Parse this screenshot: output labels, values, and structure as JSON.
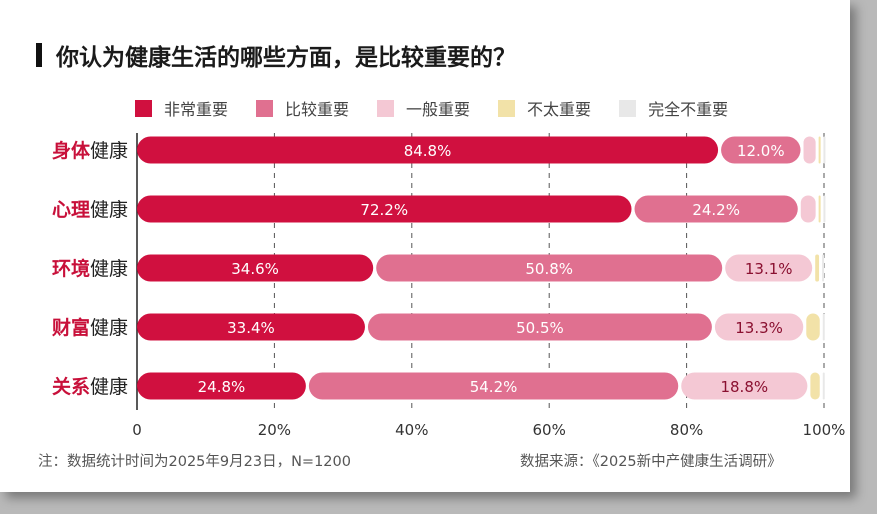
{
  "title": "你认为健康生活的哪些方面，是比较重要的？",
  "colors": [
    "#d0103f",
    "#e07090",
    "#f4c8d4",
    "#f2e2a8",
    "#e8e8e8"
  ],
  "chart_data": {
    "type": "bar",
    "orientation": "horizontal-stacked",
    "title": "你认为健康生活的哪些方面，是比较重要的？",
    "categories": [
      {
        "hl": "身体",
        "rest": "健康"
      },
      {
        "hl": "心理",
        "rest": "健康"
      },
      {
        "hl": "环境",
        "rest": "健康"
      },
      {
        "hl": "财富",
        "rest": "健康"
      },
      {
        "hl": "关系",
        "rest": "健康"
      }
    ],
    "series": [
      {
        "name": "非常重要",
        "values": [
          84.8,
          72.2,
          34.6,
          33.4,
          24.8
        ]
      },
      {
        "name": "比较重要",
        "values": [
          12.0,
          24.2,
          50.8,
          50.5,
          54.2
        ]
      },
      {
        "name": "一般重要",
        "values": [
          2.2,
          2.6,
          13.1,
          13.3,
          18.8
        ]
      },
      {
        "name": "不太重要",
        "values": [
          0.7,
          0.7,
          1.0,
          2.4,
          1.8
        ]
      },
      {
        "name": "完全不重要",
        "values": [
          0.3,
          0.3,
          0.5,
          0.4,
          0.4
        ]
      }
    ],
    "labels": [
      [
        "84.8%",
        "12.0%",
        "",
        "",
        ""
      ],
      [
        "72.2%",
        "24.2%",
        "",
        "",
        ""
      ],
      [
        "34.6%",
        "50.8%",
        "13.1%",
        "",
        ""
      ],
      [
        "33.4%",
        "50.5%",
        "13.3%",
        "",
        ""
      ],
      [
        "24.8%",
        "54.2%",
        "18.8%",
        "",
        ""
      ]
    ],
    "xticks": [
      "0",
      "20%",
      "40%",
      "60%",
      "80%",
      "100%"
    ],
    "xlim": [
      0,
      100
    ],
    "grid": true,
    "legend": "top"
  },
  "footer": {
    "note": "注：数据统计时间为2025年9月23日，N=1200",
    "source": "数据来源：《2025新中产健康生活调研》"
  }
}
